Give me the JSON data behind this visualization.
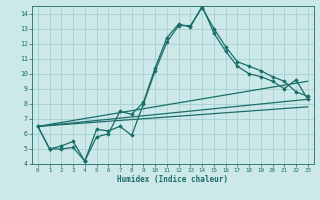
{
  "title": "",
  "xlabel": "Humidex (Indice chaleur)",
  "ylabel": "",
  "bg_color": "#cce8e8",
  "line_color": "#1a6e6a",
  "grid_color": "#9ecece",
  "xlim": [
    -0.5,
    23.5
  ],
  "ylim": [
    4,
    14.5
  ],
  "xticks": [
    0,
    1,
    2,
    3,
    4,
    5,
    6,
    7,
    8,
    9,
    10,
    11,
    12,
    13,
    14,
    15,
    16,
    17,
    18,
    19,
    20,
    21,
    22,
    23
  ],
  "yticks": [
    4,
    5,
    6,
    7,
    8,
    9,
    10,
    11,
    12,
    13,
    14
  ],
  "series": [
    {
      "x": [
        0,
        1,
        2,
        3,
        4,
        5,
        6,
        7,
        8,
        9,
        10,
        11,
        12,
        13,
        14,
        15,
        16,
        17,
        18,
        19,
        20,
        21,
        22,
        23
      ],
      "y": [
        6.5,
        5.0,
        5.0,
        5.1,
        4.2,
        6.3,
        6.2,
        6.5,
        5.9,
        8.0,
        10.2,
        12.1,
        13.2,
        13.2,
        14.4,
        13.0,
        11.8,
        10.8,
        10.5,
        10.2,
        9.8,
        9.5,
        8.8,
        8.5
      ],
      "marker": "D",
      "markersize": 1.8,
      "linewidth": 0.9,
      "has_marker": true
    },
    {
      "x": [
        0,
        1,
        2,
        3,
        4,
        5,
        6,
        7,
        8,
        9,
        10,
        11,
        12,
        13,
        14,
        15,
        16,
        17,
        18,
        19,
        20,
        21,
        22,
        23
      ],
      "y": [
        6.5,
        5.0,
        5.2,
        5.5,
        4.2,
        5.8,
        6.0,
        7.5,
        7.3,
        8.1,
        10.4,
        12.4,
        13.3,
        13.1,
        14.5,
        12.7,
        11.5,
        10.5,
        10.0,
        9.8,
        9.5,
        9.0,
        9.6,
        8.3
      ],
      "marker": "D",
      "markersize": 1.8,
      "linewidth": 0.9,
      "has_marker": true
    },
    {
      "x": [
        0,
        23
      ],
      "y": [
        6.5,
        9.5
      ],
      "marker": null,
      "markersize": 0,
      "linewidth": 0.9,
      "has_marker": false
    },
    {
      "x": [
        0,
        23
      ],
      "y": [
        6.5,
        8.3
      ],
      "marker": null,
      "markersize": 0,
      "linewidth": 0.9,
      "has_marker": false
    },
    {
      "x": [
        0,
        23
      ],
      "y": [
        6.5,
        7.8
      ],
      "marker": null,
      "markersize": 0,
      "linewidth": 0.9,
      "has_marker": false
    }
  ]
}
